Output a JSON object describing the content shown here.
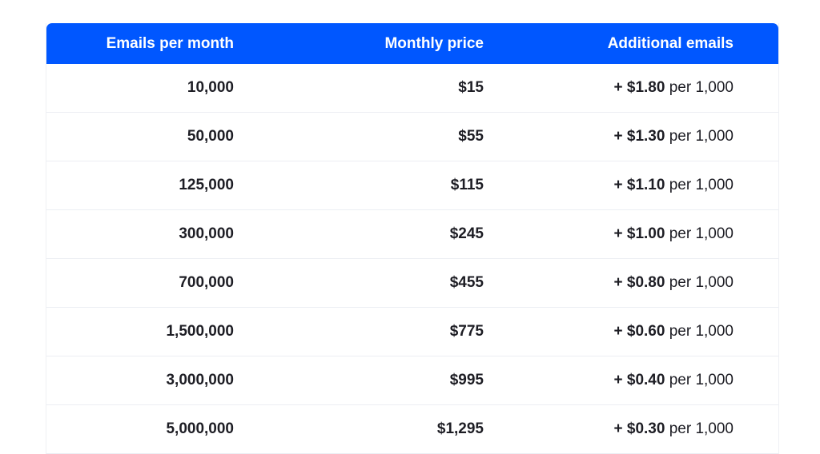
{
  "table": {
    "headers": {
      "emails": "Emails per month",
      "price": "Monthly price",
      "additional": "Additional emails"
    },
    "rows": [
      {
        "emails": "10,000",
        "price": "$15",
        "rate": "+ $1.80",
        "unit": "per 1,000"
      },
      {
        "emails": "50,000",
        "price": "$55",
        "rate": "+ $1.30",
        "unit": "per 1,000"
      },
      {
        "emails": "125,000",
        "price": "$115",
        "rate": "+ $1.10",
        "unit": "per 1,000"
      },
      {
        "emails": "300,000",
        "price": "$245",
        "rate": "+ $1.00",
        "unit": "per 1,000"
      },
      {
        "emails": "700,000",
        "price": "$455",
        "rate": "+ $0.80",
        "unit": "per 1,000"
      },
      {
        "emails": "1,500,000",
        "price": "$775",
        "rate": "+ $0.60",
        "unit": "per 1,000"
      },
      {
        "emails": "3,000,000",
        "price": "$995",
        "rate": "+ $0.40",
        "unit": "per 1,000"
      },
      {
        "emails": "5,000,000",
        "price": "$1,295",
        "rate": "+ $0.30",
        "unit": "per 1,000"
      }
    ]
  },
  "colors": {
    "header_bg": "#0057ff",
    "header_text": "#ffffff",
    "body_text": "#1d1d24",
    "row_divider": "#eceef3"
  }
}
